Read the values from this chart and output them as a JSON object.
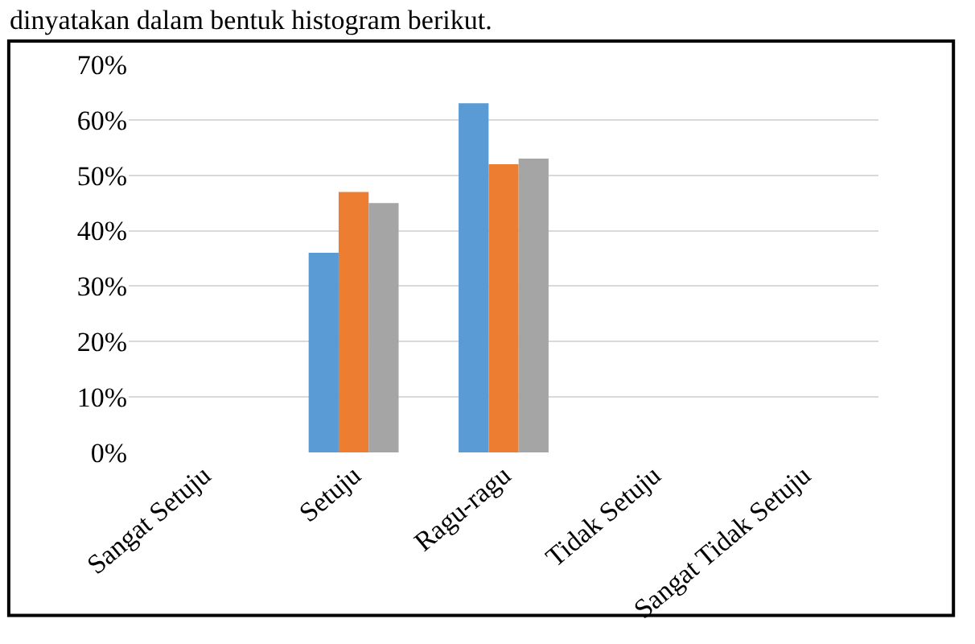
{
  "chart_data": {
    "type": "bar",
    "title": "dinyatakan dalam bentuk histogram berikut.",
    "categories": [
      "Sangat Setuju",
      "Setuju",
      "Ragu-ragu",
      "Tidak Setuju",
      "Sangat Tidak Setuju"
    ],
    "series": [
      {
        "color": "#5b9bd5",
        "values": [
          0,
          36,
          63,
          0,
          0
        ]
      },
      {
        "color": "#ed7d31",
        "values": [
          0,
          47,
          52,
          0,
          0
        ]
      },
      {
        "color": "#a5a5a5",
        "values": [
          0,
          45,
          53,
          0,
          0
        ]
      }
    ],
    "ylim": [
      0,
      70
    ],
    "yticks": [
      {
        "value": 0,
        "label": "0%"
      },
      {
        "value": 10,
        "label": "10%"
      },
      {
        "value": 20,
        "label": "20%"
      },
      {
        "value": 30,
        "label": "30%"
      },
      {
        "value": 40,
        "label": "40%"
      },
      {
        "value": 50,
        "label": "50%"
      },
      {
        "value": 60,
        "label": "60%"
      },
      {
        "value": 70,
        "label": "70%"
      }
    ],
    "grid": "y"
  }
}
